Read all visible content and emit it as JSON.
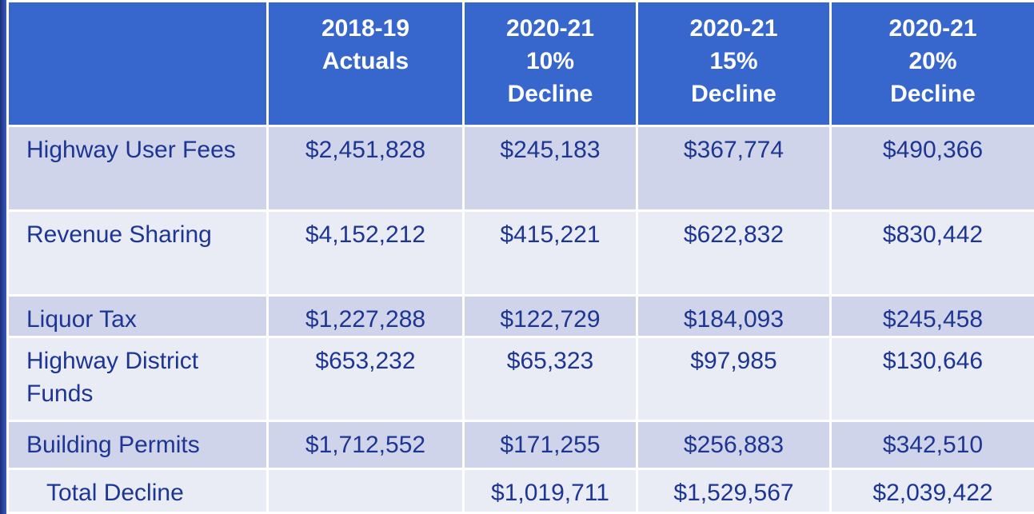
{
  "table": {
    "header": [
      "2018-19\nActuals",
      "2020-21\n10%\nDecline",
      "2020-21\n15%\nDecline",
      "2020-21\n20%\nDecline"
    ],
    "rows": [
      [
        "Highway User Fees",
        "$2,451,828",
        "$245,183",
        "$367,774",
        "$490,366"
      ],
      [
        "Revenue Sharing",
        "$4,152,212",
        "$415,221",
        "$622,832",
        "$830,442"
      ],
      [
        "Liquor Tax",
        "$1,227,288",
        "$122,729",
        "$184,093",
        "$245,458"
      ],
      [
        "Highway District Funds",
        "$653,232",
        "$65,323",
        "$97,985",
        "$130,646"
      ],
      [
        "Building Permits",
        "$1,712,552",
        "$171,255",
        "$256,883",
        "$342,510"
      ]
    ],
    "total": {
      "label": "Total Decline",
      "values": [
        "$1,019,711",
        "$1,529,567",
        "$2,039,422"
      ]
    }
  }
}
